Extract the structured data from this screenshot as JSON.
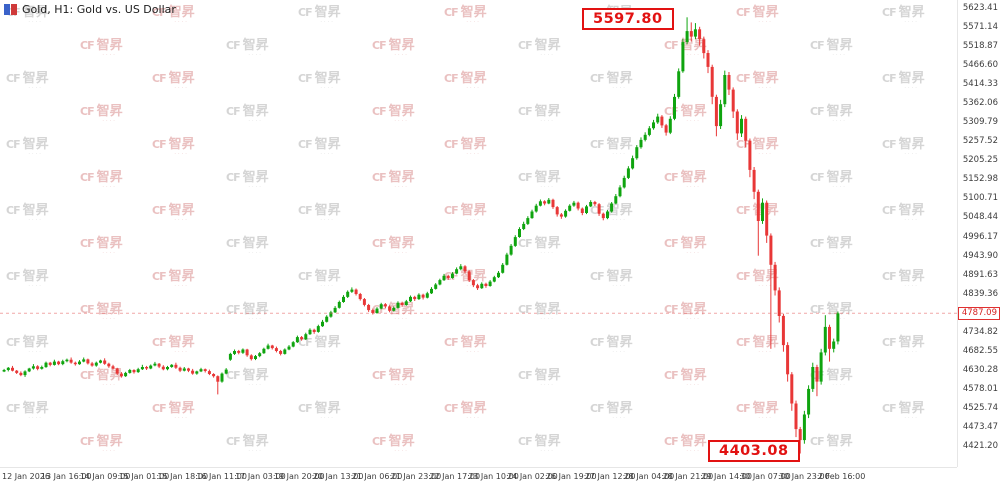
{
  "header": {
    "symbol_label": "Gold, H1: Gold vs. US Dollar"
  },
  "watermark": {
    "prefix": "CF",
    "text": "智昇",
    "sub": "····",
    "color_a": "#eac1c1",
    "color_b": "#d5d5d5"
  },
  "chart_data": {
    "type": "candlestick",
    "title": "Gold, H1: Gold vs. US Dollar",
    "timeframe": "H1",
    "up_color": "#0fa40f",
    "down_color": "#e83737",
    "ylim": [
      4366.2,
      5645.3
    ],
    "high_annotation": "5597.80",
    "low_annotation": "4403.08",
    "current_price": "4787.09",
    "y_tick_labels": [
      "5623.41",
      "5571.14",
      "5518.87",
      "5466.60",
      "5414.33",
      "5362.06",
      "5309.79",
      "5257.52",
      "5205.25",
      "5152.98",
      "5100.71",
      "5048.44",
      "4996.17",
      "4943.90",
      "4891.63",
      "4839.36",
      "4787.09",
      "4734.82",
      "4682.55",
      "4630.28",
      "4578.01",
      "4525.74",
      "4473.47",
      "4421.20"
    ],
    "x_tick_labels": [
      "12 Jan 2026",
      "13 Jan 16:00",
      "14 Jan 09:00",
      "15 Jan 01:00",
      "15 Jan 18:00",
      "16 Jan 11:00",
      "17 Jan 03:00",
      "19 Jan 20:00",
      "20 Jan 13:00",
      "21 Jan 06:00",
      "21 Jan 23:00",
      "22 Jan 17:00",
      "23 Jan 10:00",
      "24 Jan 02:00",
      "26 Jan 19:00",
      "27 Jan 12:00",
      "28 Jan 04:00",
      "28 Jan 21:00",
      "29 Jan 14:00",
      "30 Jan 07:00",
      "30 Jan 23:00",
      "2 Feb 16:00"
    ],
    "candles": [
      [
        4628,
        4635,
        4626,
        4632
      ],
      [
        4632,
        4640,
        4628,
        4638
      ],
      [
        4638,
        4643,
        4628,
        4630
      ],
      [
        4630,
        4632,
        4621,
        4624
      ],
      [
        4624,
        4628,
        4615,
        4618
      ],
      [
        4618,
        4631,
        4613,
        4628
      ],
      [
        4628,
        4638,
        4626,
        4636
      ],
      [
        4636,
        4648,
        4633,
        4642
      ],
      [
        4642,
        4645,
        4631,
        4635
      ],
      [
        4635,
        4644,
        4633,
        4640
      ],
      [
        4640,
        4655,
        4638,
        4652
      ],
      [
        4652,
        4654,
        4642,
        4646
      ],
      [
        4646,
        4660,
        4644,
        4655
      ],
      [
        4655,
        4657,
        4645,
        4648
      ],
      [
        4648,
        4660,
        4645,
        4656
      ],
      [
        4656,
        4663,
        4653,
        4660
      ],
      [
        4660,
        4666,
        4649,
        4652
      ],
      [
        4652,
        4655,
        4644,
        4648
      ],
      [
        4648,
        4659,
        4646,
        4655
      ],
      [
        4655,
        4666,
        4653,
        4661
      ],
      [
        4661,
        4663,
        4647,
        4650
      ],
      [
        4650,
        4654,
        4641,
        4644
      ],
      [
        4644,
        4655,
        4641,
        4652
      ],
      [
        4652,
        4660,
        4650,
        4658
      ],
      [
        4658,
        4664,
        4646,
        4649
      ],
      [
        4649,
        4652,
        4638,
        4642
      ],
      [
        4642,
        4646,
        4633,
        4636
      ],
      [
        4636,
        4638,
        4618,
        4622
      ],
      [
        4622,
        4626,
        4611,
        4615
      ],
      [
        4615,
        4627,
        4613,
        4624
      ],
      [
        4624,
        4635,
        4622,
        4632
      ],
      [
        4632,
        4634,
        4622,
        4626
      ],
      [
        4626,
        4638,
        4624,
        4634
      ],
      [
        4634,
        4646,
        4632,
        4640
      ],
      [
        4640,
        4643,
        4632,
        4636
      ],
      [
        4636,
        4647,
        4634,
        4644
      ],
      [
        4644,
        4654,
        4642,
        4649
      ],
      [
        4649,
        4651,
        4637,
        4641
      ],
      [
        4641,
        4645,
        4631,
        4634
      ],
      [
        4634,
        4643,
        4631,
        4640
      ],
      [
        4640,
        4648,
        4638,
        4646
      ],
      [
        4646,
        4652,
        4635,
        4638
      ],
      [
        4638,
        4641,
        4626,
        4630
      ],
      [
        4630,
        4640,
        4628,
        4636
      ],
      [
        4636,
        4638,
        4626,
        4630
      ],
      [
        4630,
        4635,
        4619,
        4622
      ],
      [
        4622,
        4630,
        4619,
        4628
      ],
      [
        4628,
        4638,
        4626,
        4634
      ],
      [
        4634,
        4636,
        4625,
        4629
      ],
      [
        4629,
        4633,
        4618,
        4621
      ],
      [
        4621,
        4623,
        4611,
        4615
      ],
      [
        4615,
        4617,
        4565,
        4600
      ],
      [
        4600,
        4625,
        4597,
        4622
      ],
      [
        4622,
        4637,
        4620,
        4633
      ],
      [
        4660,
        4679,
        4657,
        4676
      ],
      [
        4676,
        4688,
        4673,
        4684
      ],
      [
        4684,
        4687,
        4675,
        4679
      ],
      [
        4679,
        4691,
        4676,
        4688
      ],
      [
        4688,
        4690,
        4668,
        4672
      ],
      [
        4672,
        4675,
        4658,
        4662
      ],
      [
        4662,
        4673,
        4659,
        4670
      ],
      [
        4670,
        4681,
        4667,
        4678
      ],
      [
        4678,
        4693,
        4676,
        4690
      ],
      [
        4690,
        4704,
        4688,
        4699
      ],
      [
        4699,
        4701,
        4688,
        4692
      ],
      [
        4692,
        4696,
        4680,
        4684
      ],
      [
        4684,
        4687,
        4672,
        4676
      ],
      [
        4676,
        4691,
        4674,
        4688
      ],
      [
        4688,
        4700,
        4686,
        4696
      ],
      [
        4696,
        4711,
        4694,
        4708
      ],
      [
        4708,
        4726,
        4706,
        4722
      ],
      [
        4722,
        4725,
        4712,
        4716
      ],
      [
        4716,
        4734,
        4714,
        4730
      ],
      [
        4730,
        4746,
        4728,
        4742
      ],
      [
        4742,
        4745,
        4731,
        4736
      ],
      [
        4736,
        4756,
        4734,
        4752
      ],
      [
        4752,
        4769,
        4750,
        4764
      ],
      [
        4764,
        4782,
        4762,
        4778
      ],
      [
        4778,
        4794,
        4775,
        4790
      ],
      [
        4790,
        4807,
        4788,
        4802
      ],
      [
        4802,
        4822,
        4800,
        4818
      ],
      [
        4818,
        4837,
        4816,
        4832
      ],
      [
        4832,
        4850,
        4829,
        4846
      ],
      [
        4846,
        4858,
        4843,
        4852
      ],
      [
        4852,
        4855,
        4836,
        4840
      ],
      [
        4840,
        4843,
        4822,
        4826
      ],
      [
        4826,
        4829,
        4806,
        4810
      ],
      [
        4810,
        4813,
        4791,
        4796
      ],
      [
        4796,
        4800,
        4784,
        4788
      ],
      [
        4788,
        4804,
        4786,
        4800
      ],
      [
        4800,
        4816,
        4798,
        4812
      ],
      [
        4812,
        4815,
        4801,
        4806
      ],
      [
        4806,
        4809,
        4790,
        4794
      ],
      [
        4794,
        4806,
        4792,
        4802
      ],
      [
        4802,
        4820,
        4800,
        4816
      ],
      [
        4816,
        4819,
        4805,
        4810
      ],
      [
        4810,
        4824,
        4808,
        4820
      ],
      [
        4820,
        4836,
        4818,
        4832
      ],
      [
        4832,
        4835,
        4821,
        4826
      ],
      [
        4826,
        4842,
        4824,
        4838
      ],
      [
        4838,
        4841,
        4825,
        4830
      ],
      [
        4830,
        4846,
        4828,
        4842
      ],
      [
        4842,
        4859,
        4840,
        4854
      ],
      [
        4854,
        4870,
        4852,
        4866
      ],
      [
        4866,
        4882,
        4864,
        4878
      ],
      [
        4878,
        4895,
        4876,
        4890
      ],
      [
        4890,
        4893,
        4879,
        4884
      ],
      [
        4884,
        4900,
        4882,
        4896
      ],
      [
        4896,
        4913,
        4894,
        4908
      ],
      [
        4908,
        4922,
        4905,
        4916
      ],
      [
        4916,
        4919,
        4897,
        4902
      ],
      [
        4902,
        4905,
        4873,
        4878
      ],
      [
        4878,
        4881,
        4859,
        4864
      ],
      [
        4864,
        4868,
        4851,
        4856
      ],
      [
        4856,
        4872,
        4854,
        4868
      ],
      [
        4868,
        4871,
        4857,
        4862
      ],
      [
        4862,
        4878,
        4860,
        4874
      ],
      [
        4874,
        4890,
        4872,
        4886
      ],
      [
        4886,
        4903,
        4884,
        4898
      ],
      [
        4898,
        4925,
        4896,
        4920
      ],
      [
        4920,
        4953,
        4918,
        4948
      ],
      [
        4948,
        4977,
        4945,
        4972
      ],
      [
        4972,
        5001,
        4969,
        4996
      ],
      [
        4996,
        5023,
        4994,
        5018
      ],
      [
        5018,
        5038,
        5015,
        5032
      ],
      [
        5032,
        5053,
        5029,
        5048
      ],
      [
        5048,
        5071,
        5046,
        5066
      ],
      [
        5066,
        5087,
        5063,
        5082
      ],
      [
        5082,
        5099,
        5080,
        5094
      ],
      [
        5094,
        5097,
        5083,
        5088
      ],
      [
        5088,
        5103,
        5086,
        5098
      ],
      [
        5098,
        5101,
        5073,
        5078
      ],
      [
        5078,
        5081,
        5052,
        5058
      ],
      [
        5058,
        5062,
        5046,
        5052
      ],
      [
        5052,
        5072,
        5049,
        5068
      ],
      [
        5068,
        5086,
        5066,
        5082
      ],
      [
        5082,
        5095,
        5079,
        5090
      ],
      [
        5090,
        5093,
        5069,
        5074
      ],
      [
        5074,
        5077,
        5056,
        5062
      ],
      [
        5062,
        5084,
        5059,
        5080
      ],
      [
        5080,
        5097,
        5078,
        5092
      ],
      [
        5092,
        5095,
        5081,
        5086
      ],
      [
        5086,
        5089,
        5054,
        5060
      ],
      [
        5060,
        5063,
        5042,
        5048
      ],
      [
        5048,
        5070,
        5045,
        5066
      ],
      [
        5066,
        5092,
        5063,
        5088
      ],
      [
        5088,
        5114,
        5086,
        5108
      ],
      [
        5108,
        5138,
        5105,
        5132
      ],
      [
        5132,
        5164,
        5129,
        5158
      ],
      [
        5158,
        5190,
        5155,
        5184
      ],
      [
        5184,
        5219,
        5181,
        5212
      ],
      [
        5212,
        5248,
        5208,
        5242
      ],
      [
        5242,
        5269,
        5238,
        5262
      ],
      [
        5262,
        5283,
        5258,
        5276
      ],
      [
        5276,
        5300,
        5272,
        5294
      ],
      [
        5294,
        5317,
        5290,
        5310
      ],
      [
        5310,
        5334,
        5306,
        5326
      ],
      [
        5326,
        5330,
        5295,
        5302
      ],
      [
        5302,
        5306,
        5274,
        5282
      ],
      [
        5282,
        5327,
        5278,
        5320
      ],
      [
        5320,
        5388,
        5316,
        5380
      ],
      [
        5380,
        5458,
        5375,
        5450
      ],
      [
        5450,
        5539,
        5446,
        5530
      ],
      [
        5530,
        5597.8,
        5524,
        5560
      ],
      [
        5560,
        5584,
        5532,
        5545
      ],
      [
        5545,
        5582,
        5538,
        5565
      ],
      [
        5565,
        5572,
        5520,
        5538
      ],
      [
        5538,
        5545,
        5485,
        5500
      ],
      [
        5500,
        5508,
        5445,
        5462
      ],
      [
        5462,
        5468,
        5360,
        5380
      ],
      [
        5380,
        5386,
        5272,
        5300
      ],
      [
        5300,
        5372,
        5292,
        5360
      ],
      [
        5360,
        5452,
        5352,
        5440
      ],
      [
        5440,
        5448,
        5385,
        5400
      ],
      [
        5400,
        5406,
        5322,
        5340
      ],
      [
        5340,
        5346,
        5262,
        5280
      ],
      [
        5280,
        5330,
        5270,
        5320
      ],
      [
        5320,
        5326,
        5242,
        5260
      ],
      [
        5260,
        5266,
        5160,
        5180
      ],
      [
        5180,
        5188,
        5100,
        5120
      ],
      [
        5120,
        5126,
        4945,
        5040
      ],
      [
        5040,
        5102,
        5032,
        5090
      ],
      [
        5090,
        5096,
        4980,
        5000
      ],
      [
        5000,
        5006,
        4690,
        4920
      ],
      [
        4920,
        4928,
        4836,
        4850
      ],
      [
        4850,
        4858,
        4762,
        4780
      ],
      [
        4780,
        4786,
        4682,
        4700
      ],
      [
        4700,
        4708,
        4600,
        4620
      ],
      [
        4620,
        4626,
        4520,
        4540
      ],
      [
        4540,
        4548,
        4448,
        4470
      ],
      [
        4470,
        4476,
        4403.08,
        4440
      ],
      [
        4440,
        4520,
        4430,
        4510
      ],
      [
        4510,
        4590,
        4500,
        4580
      ],
      [
        4580,
        4652,
        4572,
        4640
      ],
      [
        4640,
        4646,
        4560,
        4600
      ],
      [
        4600,
        4690,
        4592,
        4680
      ],
      [
        4680,
        4782,
        4672,
        4750
      ],
      [
        4750,
        4756,
        4655,
        4690
      ],
      [
        4690,
        4718,
        4680,
        4710
      ],
      [
        4710,
        4792,
        4702,
        4787.09
      ]
    ]
  }
}
